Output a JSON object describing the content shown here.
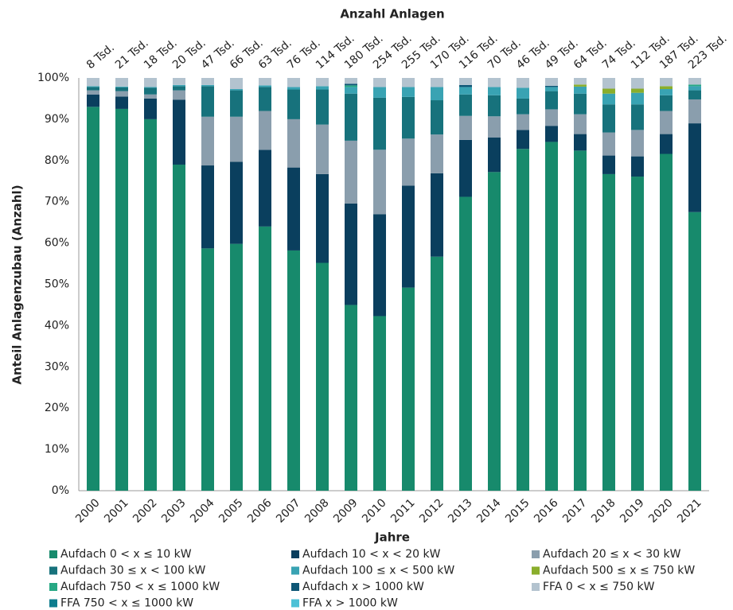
{
  "chart_data": {
    "type": "stacked_bar",
    "title": "Anzahl Anlagen",
    "xlabel": "Jahre",
    "ylabel": "Anteil Anlagenzubau (Anzahl)",
    "categories": [
      "2000",
      "2001",
      "2002",
      "2003",
      "2004",
      "2005",
      "2006",
      "2007",
      "2008",
      "2009",
      "2010",
      "2011",
      "2012",
      "2013",
      "2014",
      "2015",
      "2016",
      "2017",
      "2018",
      "2019",
      "2020",
      "2021"
    ],
    "top_labels": [
      "8 Tsd.",
      "21 Tsd.",
      "18 Tsd.",
      "20 Tsd.",
      "47 Tsd.",
      "66 Tsd.",
      "63 Tsd.",
      "76 Tsd.",
      "114 Tsd.",
      "180 Tsd.",
      "254 Tsd.",
      "255 Tsd.",
      "170 Tsd.",
      "116 Tsd.",
      "70 Tsd.",
      "46 Tsd.",
      "49 Tsd.",
      "64 Tsd.",
      "74 Tsd.",
      "112 Tsd.",
      "187 Tsd.",
      "223 Tsd."
    ],
    "ylim": [
      0,
      100
    ],
    "yticks": [
      {
        "value": 0,
        "label": "0%"
      },
      {
        "value": 10,
        "label": "10%"
      },
      {
        "value": 20,
        "label": "20%"
      },
      {
        "value": 30,
        "label": "30%"
      },
      {
        "value": 40,
        "label": "40%"
      },
      {
        "value": 50,
        "label": "50%"
      },
      {
        "value": 60,
        "label": "60%"
      },
      {
        "value": 70,
        "label": "70%"
      },
      {
        "value": 80,
        "label": "80%"
      },
      {
        "value": 90,
        "label": "90%"
      },
      {
        "value": 100,
        "label": "100%"
      }
    ],
    "grid": false,
    "series": [
      {
        "name": "Aufdach 0 < x ≤ 10 kW",
        "color": "#178a6c",
        "values": [
          93,
          92.5,
          90,
          79,
          58.7,
          59.8,
          64,
          58.2,
          55.2,
          45,
          42.3,
          49.2,
          56.7,
          71.2,
          77.2,
          82.8,
          84.5,
          82.4,
          76.7,
          76.1,
          81.6,
          67.5
        ]
      },
      {
        "name": "Aufdach 10 < x < 20 kW",
        "color": "#0a3f5e",
        "values": [
          3,
          3,
          5,
          15.7,
          20.1,
          19.9,
          18.6,
          20.1,
          21.5,
          24.6,
          24.7,
          24.7,
          20.2,
          13.8,
          8.4,
          4.6,
          3.9,
          4,
          4.5,
          4.9,
          4.8,
          21.5
        ]
      },
      {
        "name": "Aufdach 20 ≤ x < 30 kW",
        "color": "#8a9ead",
        "values": [
          1,
          1.3,
          1,
          2.3,
          11.8,
          10.9,
          9.4,
          11.7,
          12,
          15.2,
          15.6,
          11.4,
          9.4,
          5.8,
          5.1,
          3.8,
          4,
          4.8,
          5.6,
          6.4,
          5.6,
          5.8
        ]
      },
      {
        "name": "Aufdach 30 ≤ x < 100 kW",
        "color": "#17727c",
        "values": [
          0.8,
          0.9,
          1.6,
          1,
          7.4,
          6.4,
          5.8,
          7.2,
          8.5,
          11.4,
          12.6,
          10.1,
          8.3,
          5.2,
          5.1,
          3.8,
          4.4,
          5,
          6.8,
          6.2,
          3.8,
          2.2
        ]
      },
      {
        "name": "Aufdach 100 ≤ x < 500 kW",
        "color": "#39a3b3",
        "values": [
          0.2,
          0.2,
          0.2,
          0.3,
          0.3,
          0.3,
          0.4,
          0.6,
          0.8,
          1.6,
          2.6,
          2.4,
          3.2,
          1.8,
          2,
          2.6,
          1,
          1.7,
          2.6,
          2.8,
          1.5,
          1
        ]
      },
      {
        "name": "Aufdach 500 ≤ x ≤ 750 kW",
        "color": "#8aae2c",
        "values": [
          0,
          0,
          0,
          0,
          0,
          0,
          0,
          0,
          0,
          0,
          0,
          0,
          0,
          0,
          0,
          0,
          0,
          0.5,
          1.2,
          1,
          0.7,
          0
        ]
      },
      {
        "name": "Aufdach 750 < x  ≤ 1000 kW",
        "color": "#27a884",
        "values": [
          0,
          0,
          0,
          0,
          0,
          0,
          0,
          0,
          0,
          0.4,
          0,
          0,
          0,
          0,
          0,
          0,
          0,
          0,
          0,
          0,
          0,
          0.4
        ]
      },
      {
        "name": "Aufdach x > 1000 kW",
        "color": "#0e5675",
        "values": [
          0,
          0,
          0,
          0,
          0,
          0,
          0,
          0,
          0,
          0.4,
          0,
          0,
          0,
          0.5,
          0,
          0,
          0.3,
          0,
          0,
          0,
          0,
          0
        ]
      },
      {
        "name": "FFA 0 < x ≤ 750 kW",
        "color": "#b3c3cf",
        "values": [
          2,
          2.1,
          2.2,
          1.7,
          1.7,
          2.7,
          1.8,
          2.2,
          2,
          1.4,
          2.2,
          2.2,
          2.2,
          1.7,
          2.2,
          2.4,
          1.9,
          1.6,
          2.6,
          2.6,
          2,
          1.6
        ]
      },
      {
        "name": "FFA 750 < x  ≤ 1000 kW",
        "color": "#0d7d8e",
        "values": [
          0,
          0,
          0,
          0,
          0,
          0,
          0,
          0,
          0,
          0,
          0,
          0,
          0,
          0,
          0,
          0,
          0,
          0,
          0,
          0,
          0,
          0
        ]
      },
      {
        "name": "FFA x > 1000 kW",
        "color": "#4dc1d6",
        "values": [
          0,
          0,
          0,
          0,
          0,
          0,
          0,
          0,
          0,
          0,
          0,
          0,
          0,
          0,
          0,
          0,
          0,
          0,
          0,
          0,
          0,
          0
        ]
      }
    ]
  }
}
